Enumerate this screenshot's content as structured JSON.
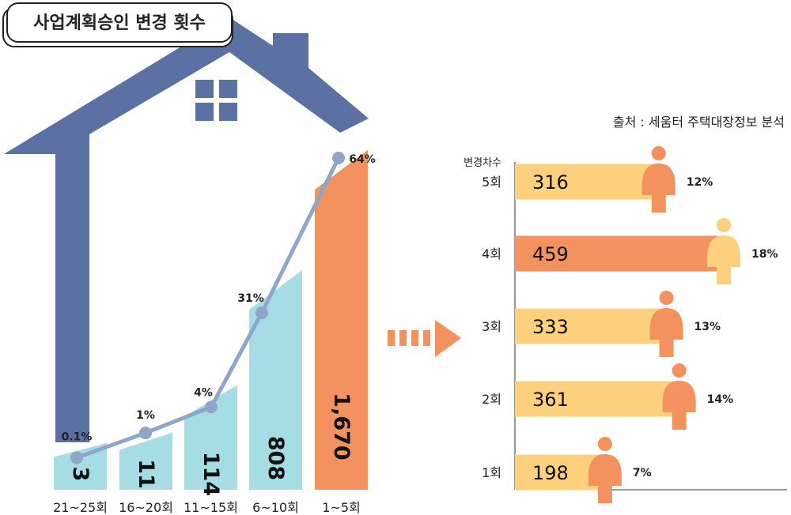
{
  "title": "사업계획승인 변경 횟수",
  "source": "출처 : 세움터 주택대장정보 분석",
  "colors": {
    "house": "#5b71a3",
    "teal": "#a6dde4",
    "orange": "#f4925f",
    "light_orange": "#fdd07e",
    "line": "#8ea6c9",
    "arrow": "#f4925f"
  },
  "chart_data": [
    {
      "type": "bar",
      "categories": [
        "21~25회",
        "16~20회",
        "11~15회",
        "6~10회",
        "1~5회"
      ],
      "values": [
        3,
        11,
        114,
        808,
        1670
      ],
      "value_labels": [
        "3",
        "11",
        "114",
        "808",
        "1,670"
      ],
      "share_labels": [
        "0.1%",
        "1%",
        "4%",
        "31%",
        "64%"
      ],
      "share": [
        0.1,
        1,
        4,
        31,
        64
      ],
      "bar_colors": [
        "#a6dde4",
        "#a6dde4",
        "#a6dde4",
        "#a6dde4",
        "#f4925f"
      ]
    },
    {
      "type": "bar",
      "orientation": "horizontal",
      "axis_title": "변경차수",
      "categories": [
        "5회",
        "4회",
        "3회",
        "2회",
        "1회"
      ],
      "values": [
        316,
        459,
        333,
        361,
        198
      ],
      "share_labels": [
        "12%",
        "18%",
        "13%",
        "14%",
        "7%"
      ],
      "share": [
        12,
        18,
        13,
        14,
        7
      ],
      "bar_colors": [
        "#fdd07e",
        "#f4925f",
        "#fdd07e",
        "#fdd07e",
        "#fdd07e"
      ],
      "figure_colors": [
        "#f4925f",
        "#fdd07e",
        "#f4925f",
        "#f4925f",
        "#f4925f"
      ]
    }
  ]
}
